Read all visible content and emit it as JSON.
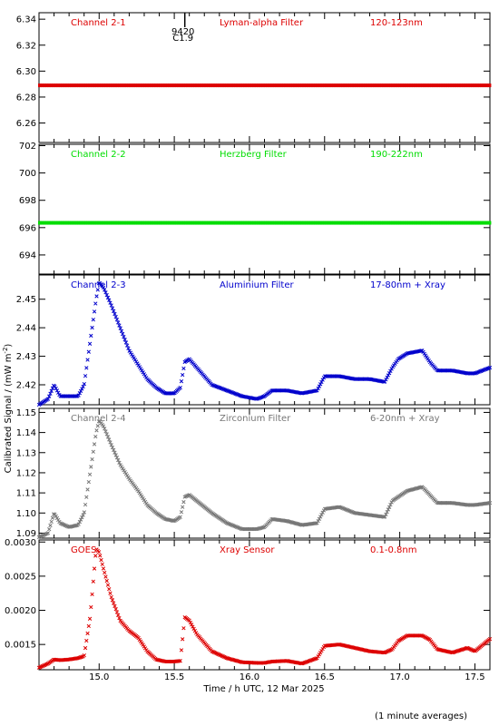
{
  "xlabel": "Time / h UTC, 12 Mar 2025",
  "ylabel": "Calibrated Signal / (mW m",
  "ylabel_sup": "-2",
  "ylabel_close": ")",
  "footnote": "(1 minute averages)",
  "event_marker": {
    "x": 15.57,
    "label_top": "9420",
    "label_bottom": "C1.9"
  },
  "colors": {
    "red": "#dd0000",
    "green": "#00dd00",
    "blue": "#0000cc",
    "gray": "#777777"
  },
  "chart_data": [
    {
      "type": "scatter",
      "panel_labels": [
        "Channel 2-1",
        "Lyman-alpha Filter",
        "120-123nm"
      ],
      "color": "red",
      "xlim": [
        14.6,
        17.6
      ],
      "ylim": [
        6.245,
        6.345
      ],
      "yticks": [
        6.26,
        6.28,
        6.3,
        6.32,
        6.34
      ],
      "ytick_labels": [
        "6.26",
        "6.28",
        "6.30",
        "6.32",
        "6.34"
      ],
      "x": [
        14.6,
        17.6
      ],
      "y": [
        6.289,
        6.289
      ]
    },
    {
      "type": "scatter",
      "panel_labels": [
        "Channel 2-2",
        "Herzberg Filter",
        "190-222nm"
      ],
      "color": "green",
      "xlim": [
        14.6,
        17.6
      ],
      "ylim": [
        692.6,
        702.1
      ],
      "yticks": [
        694,
        696,
        698,
        700,
        702
      ],
      "ytick_labels": [
        "694",
        "696",
        "698",
        "700",
        "702"
      ],
      "x": [
        14.6,
        17.6
      ],
      "y": [
        696.35,
        696.35
      ]
    },
    {
      "type": "scatter",
      "panel_labels": [
        "Channel 2-3",
        "Aluminium Filter",
        "17-80nm + Xray"
      ],
      "color": "blue",
      "xlim": [
        14.6,
        17.6
      ],
      "ylim": [
        2.413,
        2.4585
      ],
      "yticks": [
        2.42,
        2.43,
        2.44,
        2.45
      ],
      "ytick_labels": [
        "2.42",
        "2.43",
        "2.44",
        "2.45"
      ],
      "x": [
        14.6,
        14.66,
        14.7,
        14.74,
        14.8,
        14.86,
        14.9,
        14.94,
        14.98,
        15.0,
        15.03,
        15.08,
        15.14,
        15.2,
        15.26,
        15.32,
        15.38,
        15.44,
        15.5,
        15.54,
        15.57,
        15.6,
        15.65,
        15.75,
        15.85,
        15.95,
        16.05,
        16.1,
        16.15,
        16.25,
        16.35,
        16.45,
        16.5,
        16.6,
        16.7,
        16.8,
        16.9,
        16.95,
        16.99,
        17.05,
        17.15,
        17.2,
        17.25,
        17.35,
        17.45,
        17.5,
        17.6
      ],
      "y": [
        2.413,
        2.415,
        2.42,
        2.416,
        2.416,
        2.416,
        2.42,
        2.435,
        2.45,
        2.456,
        2.454,
        2.448,
        2.44,
        2.432,
        2.427,
        2.422,
        2.419,
        2.417,
        2.417,
        2.419,
        2.428,
        2.429,
        2.426,
        2.42,
        2.418,
        2.416,
        2.415,
        2.416,
        2.418,
        2.418,
        2.417,
        2.418,
        2.423,
        2.423,
        2.422,
        2.422,
        2.421,
        2.426,
        2.429,
        2.431,
        2.432,
        2.428,
        2.425,
        2.425,
        2.424,
        2.424,
        2.426
      ]
    },
    {
      "type": "scatter",
      "panel_labels": [
        "Channel 2-4",
        "Zirconium Filter",
        "6-20nm + Xray"
      ],
      "color": "gray",
      "xlim": [
        14.6,
        17.6
      ],
      "ylim": [
        1.0875,
        1.152
      ],
      "yticks": [
        1.09,
        1.1,
        1.11,
        1.12,
        1.13,
        1.14,
        1.15
      ],
      "ytick_labels": [
        "1.09",
        "1.10",
        "1.11",
        "1.12",
        "1.13",
        "1.14",
        "1.15"
      ],
      "x": [
        14.6,
        14.66,
        14.7,
        14.74,
        14.8,
        14.86,
        14.9,
        14.94,
        14.98,
        15.0,
        15.03,
        15.08,
        15.14,
        15.2,
        15.26,
        15.32,
        15.38,
        15.44,
        15.5,
        15.54,
        15.57,
        15.6,
        15.65,
        15.75,
        15.85,
        15.95,
        16.05,
        16.1,
        16.15,
        16.25,
        16.35,
        16.45,
        16.5,
        16.6,
        16.7,
        16.8,
        16.9,
        16.95,
        16.99,
        17.05,
        17.15,
        17.2,
        17.25,
        17.35,
        17.45,
        17.5,
        17.6
      ],
      "y": [
        1.088,
        1.09,
        1.1,
        1.095,
        1.093,
        1.094,
        1.1,
        1.12,
        1.14,
        1.146,
        1.143,
        1.134,
        1.124,
        1.117,
        1.111,
        1.104,
        1.1,
        1.097,
        1.096,
        1.098,
        1.108,
        1.109,
        1.106,
        1.1,
        1.095,
        1.092,
        1.092,
        1.093,
        1.097,
        1.096,
        1.094,
        1.095,
        1.102,
        1.103,
        1.1,
        1.099,
        1.098,
        1.106,
        1.108,
        1.111,
        1.113,
        1.109,
        1.105,
        1.105,
        1.104,
        1.104,
        1.105
      ]
    },
    {
      "type": "scatter",
      "panel_labels": [
        "GOES",
        "Xray Sensor",
        "0.1-0.8nm"
      ],
      "color": "red",
      "xlim": [
        14.6,
        17.6
      ],
      "ylim": [
        0.00113,
        0.00303
      ],
      "yticks": [
        0.0015,
        0.002,
        0.0025,
        0.003
      ],
      "ytick_labels": [
        "0.0015",
        "0.0020",
        "0.0025",
        "0.0030"
      ],
      "xticks": [
        15.0,
        15.5,
        16.0,
        16.5,
        17.0,
        17.5
      ],
      "xtick_labels": [
        "15.0",
        "15.5",
        "16.0",
        "16.5",
        "17.0",
        "17.5"
      ],
      "x": [
        14.6,
        14.66,
        14.7,
        14.74,
        14.8,
        14.86,
        14.9,
        14.94,
        14.98,
        15.0,
        15.03,
        15.08,
        15.14,
        15.2,
        15.26,
        15.32,
        15.38,
        15.44,
        15.5,
        15.54,
        15.57,
        15.6,
        15.65,
        15.75,
        15.85,
        15.95,
        16.05,
        16.1,
        16.15,
        16.25,
        16.35,
        16.45,
        16.5,
        16.6,
        16.7,
        16.8,
        16.9,
        16.95,
        16.99,
        17.05,
        17.15,
        17.2,
        17.25,
        17.35,
        17.45,
        17.5,
        17.6
      ],
      "y": [
        0.00116,
        0.00122,
        0.00128,
        0.00127,
        0.00128,
        0.0013,
        0.00133,
        0.0019,
        0.0029,
        0.00285,
        0.0026,
        0.0022,
        0.00185,
        0.0017,
        0.0016,
        0.0014,
        0.00128,
        0.00125,
        0.00125,
        0.00126,
        0.0019,
        0.00185,
        0.00165,
        0.0014,
        0.0013,
        0.00124,
        0.00123,
        0.00123,
        0.00125,
        0.00126,
        0.00122,
        0.0013,
        0.00148,
        0.0015,
        0.00145,
        0.0014,
        0.00138,
        0.00143,
        0.00155,
        0.00163,
        0.00163,
        0.00157,
        0.00143,
        0.00138,
        0.00145,
        0.0014,
        0.00158
      ]
    }
  ]
}
